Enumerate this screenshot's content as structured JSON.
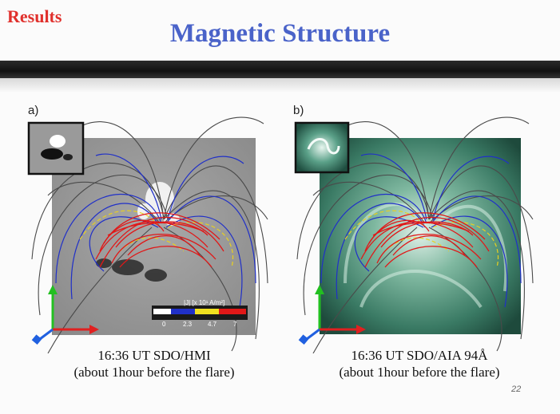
{
  "header": {
    "section_label": "Results",
    "title": "Magnetic Structure"
  },
  "panels": [
    {
      "label": "a)",
      "caption_line1": "16:36 UT SDO/HMI",
      "caption_line2": "(about 1hour before the flare)",
      "colorbar_label": "|J| [x 10¹ A/m²]",
      "colorbar_ticks": [
        "0",
        "2.3",
        "4.7",
        "7"
      ]
    },
    {
      "label": "b)",
      "caption_line1": "16:36 UT SDO/AIA 94Å",
      "caption_line2": "(about 1hour before the flare)"
    }
  ],
  "page_number": "22",
  "colors": {
    "accent_results": "#e0302c",
    "title_blue": "#4a63c9",
    "field_red": "#e01818",
    "field_blue": "#2030c8",
    "field_yellow": "#e8d020",
    "field_gray": "#4a4a4a",
    "aia_green": "#2e6a58"
  }
}
